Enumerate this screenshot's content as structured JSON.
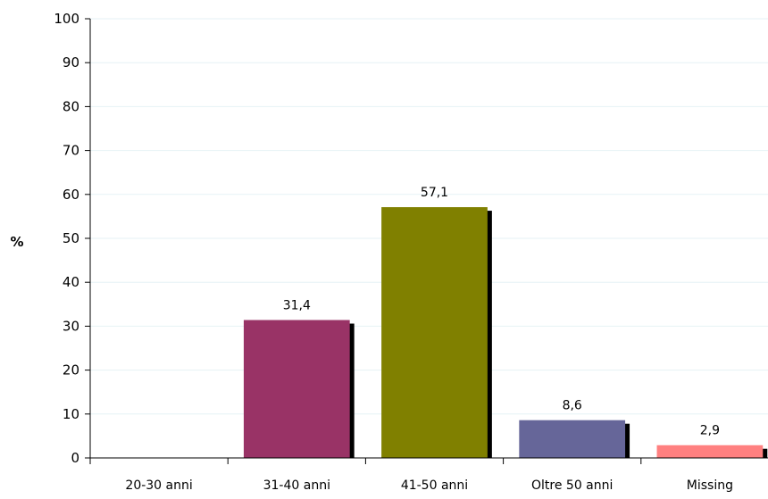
{
  "chart_data": {
    "type": "bar",
    "title": "",
    "xlabel": "",
    "ylabel": "%",
    "categories": [
      "20-30 anni",
      "31-40 anni",
      "41-50 anni",
      "Oltre 50 anni",
      "Missing"
    ],
    "values": [
      0,
      31.4,
      57.1,
      8.6,
      2.9
    ],
    "data_labels": [
      "",
      "31,4",
      "57,1",
      "8,6",
      "2,9"
    ],
    "colors": [
      "#993366",
      "#993366",
      "#808000",
      "#666699",
      "#FF8080"
    ],
    "ylim": [
      0,
      100
    ],
    "yticks": [
      0,
      10,
      20,
      30,
      40,
      50,
      60,
      70,
      80,
      90,
      100
    ],
    "grid": true,
    "gridline_color": "#E6F2F5",
    "legend": "none"
  }
}
